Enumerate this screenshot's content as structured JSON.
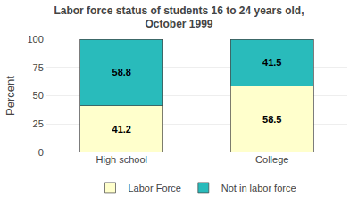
{
  "chart_data": {
    "type": "bar",
    "stacked": true,
    "title": "Labor force status of students 16 to 24 years old,\nOctober 1999",
    "ylabel": "Percent",
    "categories": [
      "High school",
      "College"
    ],
    "series": [
      {
        "name": "Labor Force",
        "color": "#FFFFCC",
        "values": [
          41.2,
          58.5
        ]
      },
      {
        "name": "Not in labor force",
        "color": "#29BBBB",
        "values": [
          58.8,
          41.5
        ]
      }
    ],
    "ylim": [
      0,
      100
    ],
    "yticks": [
      0,
      25,
      50,
      75,
      100
    ],
    "grid": true,
    "legend": "bottom",
    "data_labels": true
  }
}
